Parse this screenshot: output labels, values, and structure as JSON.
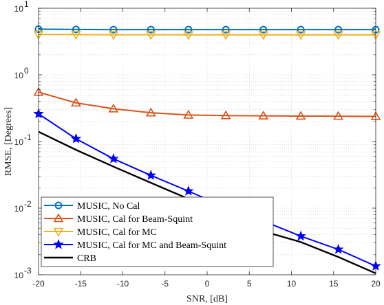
{
  "chart_data": {
    "type": "line",
    "title": "",
    "xlabel": "SNR, [dB]",
    "ylabel": "RMSE, [Degrees]",
    "xlim": [
      -20,
      20
    ],
    "ylim": [
      0.001,
      10
    ],
    "yscale": "log",
    "grid": "on (major and minor, dotted)",
    "legend_position": "bottom-left",
    "x_ticks": [
      -20,
      -15,
      -10,
      -5,
      0,
      5,
      10,
      15,
      20
    ],
    "y_ticks": [
      {
        "base": "10",
        "exp": "-3"
      },
      {
        "base": "10",
        "exp": "-2"
      },
      {
        "base": "10",
        "exp": "-1"
      },
      {
        "base": "10",
        "exp": "0"
      },
      {
        "base": "10",
        "exp": "1"
      }
    ],
    "series": [
      {
        "name": "MUSIC, No Cal",
        "color": "#0072BD",
        "marker": "circle",
        "x": [
          -20,
          -15.56,
          -11.11,
          -6.67,
          -2.22,
          2.22,
          6.67,
          11.11,
          15.56,
          20
        ],
        "values": [
          4.85,
          4.8,
          4.78,
          4.78,
          4.77,
          4.77,
          4.77,
          4.77,
          4.77,
          4.77
        ]
      },
      {
        "name": "MUSIC, Cal for Beam-Squint",
        "color": "#D95319",
        "marker": "triangle-up",
        "x": [
          -20,
          -15.56,
          -11.11,
          -6.67,
          -2.22,
          2.22,
          6.67,
          11.11,
          15.56,
          20
        ],
        "values": [
          0.55,
          0.38,
          0.31,
          0.27,
          0.25,
          0.245,
          0.243,
          0.241,
          0.24,
          0.238
        ]
      },
      {
        "name": "MUSIC, Cal for MC",
        "color": "#EDB120",
        "marker": "triangle-down",
        "x": [
          -20,
          -15.56,
          -11.11,
          -6.67,
          -2.22,
          2.22,
          6.67,
          11.11,
          15.56,
          20
        ],
        "values": [
          4.05,
          4.02,
          4.0,
          4.0,
          3.99,
          3.99,
          3.99,
          3.99,
          3.99,
          3.99
        ]
      },
      {
        "name": "MUSIC, Cal for MC and Beam-Squint",
        "color": "#0000FF",
        "marker": "star",
        "x": [
          -20,
          -15.56,
          -11.11,
          -6.67,
          -2.22,
          2.22,
          6.67,
          11.11,
          15.56,
          20
        ],
        "values": [
          0.26,
          0.11,
          0.055,
          0.031,
          0.018,
          0.0103,
          0.0064,
          0.0038,
          0.0024,
          0.00135
        ]
      },
      {
        "name": "CRB",
        "color": "#000000",
        "marker": "none",
        "x": [
          -20,
          -15.56,
          -11.11,
          -6.67,
          -2.22,
          2.22,
          6.67,
          11.11,
          15.56,
          20
        ],
        "values": [
          0.14,
          0.075,
          0.042,
          0.024,
          0.0138,
          0.0078,
          0.0045,
          0.0031,
          0.00185,
          0.00105
        ]
      }
    ]
  }
}
